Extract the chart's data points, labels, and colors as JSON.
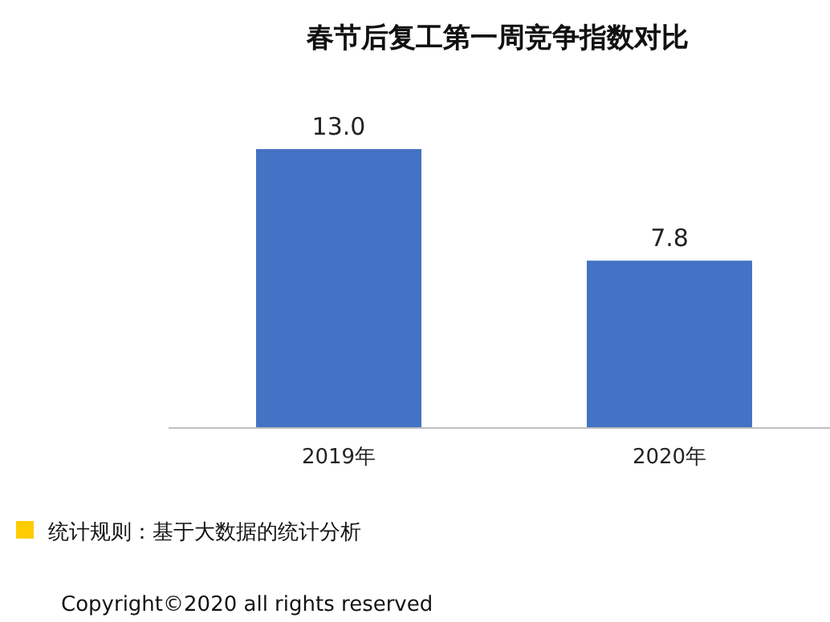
{
  "chart_data": {
    "type": "bar",
    "title": "春节后复工第一周竞争指数对比",
    "categories": [
      "2019年",
      "2020年"
    ],
    "values": [
      13.0,
      7.8
    ],
    "value_labels": [
      "13.0",
      "7.8"
    ],
    "color": "#4472c4",
    "annotations": [
      "统计规则：基于大数据的统计分析",
      "Copyright©2020 all rights reserved"
    ]
  }
}
